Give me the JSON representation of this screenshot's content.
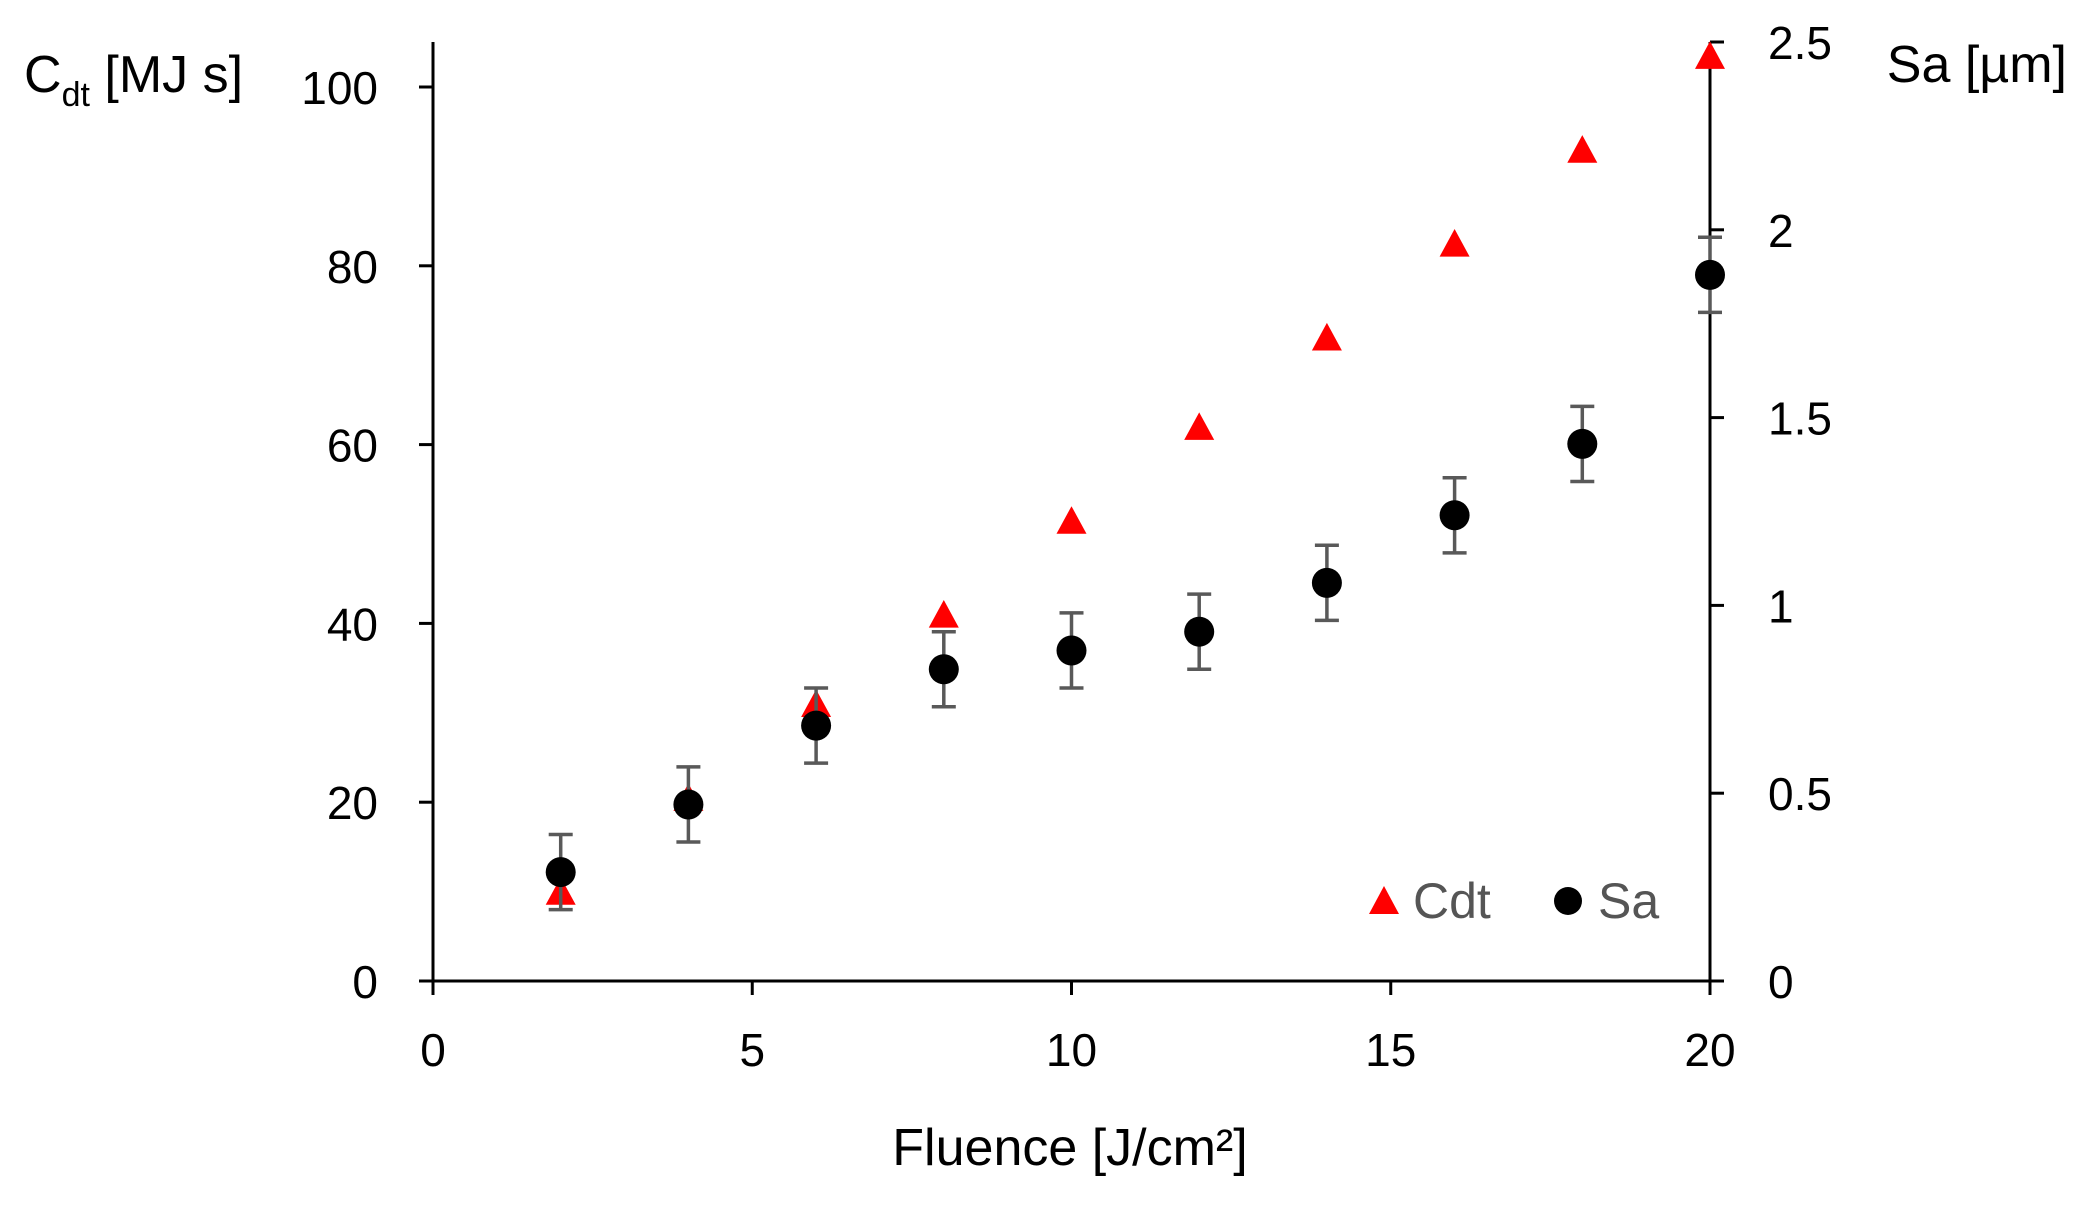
{
  "chart_data": {
    "type": "scatter",
    "title": "",
    "xlabel": "Fluence [J/cm²]",
    "ylabel_left": {
      "main": "C",
      "sub": "dt",
      "rest": " [MJ s]"
    },
    "ylabel_right": "Sa [µm]",
    "xlim": [
      0,
      20
    ],
    "ylim_left": [
      0,
      100
    ],
    "ylim_right": [
      0,
      2.5
    ],
    "x_ticks": [
      0,
      5,
      10,
      15,
      20
    ],
    "x_tick_labels": [
      "0",
      "5",
      "10",
      "15",
      "20"
    ],
    "y_left_ticks": [
      0,
      20,
      40,
      60,
      80,
      100
    ],
    "y_left_tick_labels": [
      "0",
      "20",
      "40",
      "60",
      "80",
      "100"
    ],
    "y_right_ticks": [
      0,
      0.5,
      1,
      1.5,
      2,
      2.5
    ],
    "y_right_tick_labels": [
      "0",
      "0.5",
      "1",
      "1.5",
      "2",
      "2.5"
    ],
    "legend_position": "bottom-right",
    "series": [
      {
        "name": "Cdt",
        "axis": "left",
        "marker": "triangle",
        "color": "#ff0000",
        "x": [
          2,
          4,
          6,
          8,
          10,
          12,
          14,
          16,
          18,
          20
        ],
        "values": [
          10,
          20.5,
          31,
          41,
          51.5,
          62,
          72,
          82.5,
          93,
          103.5
        ]
      },
      {
        "name": "Sa",
        "axis": "right",
        "marker": "circle",
        "color": "#000000",
        "error_color": "#595959",
        "x": [
          2,
          4,
          6,
          8,
          10,
          12,
          14,
          16,
          18,
          20
        ],
        "values": [
          0.29,
          0.47,
          0.68,
          0.83,
          0.88,
          0.93,
          1.06,
          1.24,
          1.43,
          1.88
        ],
        "errors": [
          0.1,
          0.1,
          0.1,
          0.1,
          0.1,
          0.1,
          0.1,
          0.1,
          0.1,
          0.1
        ]
      }
    ]
  }
}
